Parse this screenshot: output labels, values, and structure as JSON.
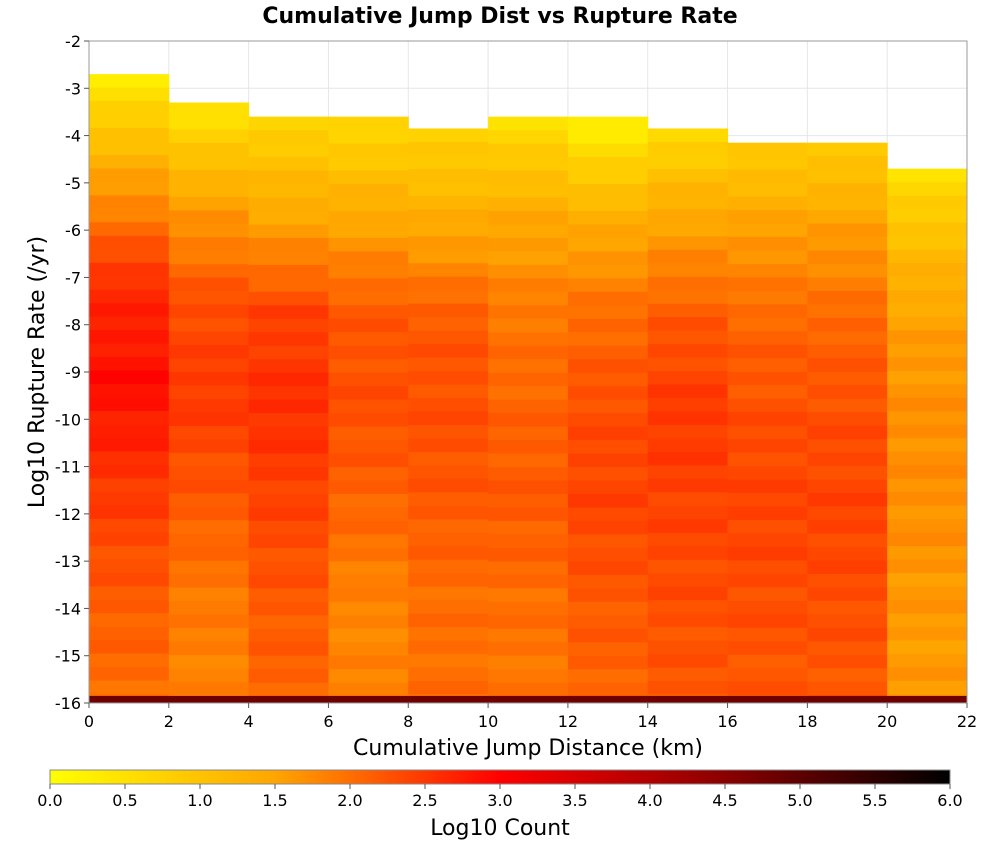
{
  "chart_data": {
    "type": "heatmap",
    "title": "Cumulative Jump Dist vs Rupture Rate",
    "xlabel": "Cumulative Jump Distance (km)",
    "ylabel": "Log10 Rupture Rate (/yr)",
    "xlim": [
      0,
      22
    ],
    "ylim": [
      -16,
      -2
    ],
    "x_ticks": [
      "0",
      "2",
      "4",
      "6",
      "8",
      "10",
      "12",
      "14",
      "16",
      "18",
      "20",
      "22"
    ],
    "y_ticks": [
      "-2",
      "-3",
      "-4",
      "-5",
      "-6",
      "-7",
      "-8",
      "-9",
      "-10",
      "-11",
      "-12",
      "-13",
      "-14",
      "-15",
      "-16"
    ],
    "x_bin_edges": [
      0,
      2,
      4,
      6,
      8,
      10,
      12,
      14,
      16,
      18,
      20,
      22
    ],
    "y_bin_size": 0.285,
    "grid": true,
    "colorbar": {
      "label": "Log10 Count",
      "range": [
        0,
        6
      ],
      "ticks": [
        "0.0",
        "0.5",
        "1.0",
        "1.5",
        "2.0",
        "2.5",
        "3.0",
        "3.5",
        "4.0",
        "4.5",
        "5.0",
        "5.5",
        "6.0"
      ],
      "colors": [
        "#ffff00",
        "#ffa500",
        "#ff0000",
        "#8b0000",
        "#000000"
      ],
      "placement": "bottom"
    },
    "series": [
      {
        "x_range": [
          0,
          2
        ],
        "y_top": -2.7,
        "log10_count_profile": [
          0.3,
          1.5,
          2.6,
          2.9,
          2.5,
          2.2,
          2.0
        ],
        "bottom_row": 4.8
      },
      {
        "x_range": [
          2,
          4
        ],
        "y_top": -3.3,
        "log10_count_profile": [
          0.4,
          1.5,
          2.3,
          2.5,
          2.2,
          1.9,
          1.8
        ],
        "bottom_row": 4.8
      },
      {
        "x_range": [
          4,
          6
        ],
        "y_top": -3.6,
        "log10_count_profile": [
          0.7,
          1.4,
          2.4,
          2.6,
          2.4,
          2.2,
          2.1
        ],
        "bottom_row": 4.8
      },
      {
        "x_range": [
          6,
          8
        ],
        "y_top": -3.6,
        "log10_count_profile": [
          0.6,
          1.4,
          2.2,
          2.3,
          2.1,
          1.8,
          1.8
        ],
        "bottom_row": 4.8
      },
      {
        "x_range": [
          8,
          10
        ],
        "y_top": -3.85,
        "log10_count_profile": [
          0.7,
          1.4,
          2.2,
          2.3,
          2.2,
          2.0,
          2.0
        ],
        "bottom_row": 4.8
      },
      {
        "x_range": [
          10,
          12
        ],
        "y_top": -3.6,
        "log10_count_profile": [
          0.5,
          1.4,
          1.9,
          2.1,
          2.2,
          2.0,
          1.9
        ],
        "bottom_row": 4.8
      },
      {
        "x_range": [
          12,
          14
        ],
        "y_top": -3.6,
        "log10_count_profile": [
          0.2,
          1.3,
          2.0,
          2.3,
          2.4,
          2.2,
          2.1
        ],
        "bottom_row": 4.8
      },
      {
        "x_range": [
          14,
          16
        ],
        "y_top": -3.85,
        "log10_count_profile": [
          0.6,
          1.5,
          2.2,
          2.5,
          2.4,
          2.3,
          2.2
        ],
        "bottom_row": 4.8
      },
      {
        "x_range": [
          16,
          18
        ],
        "y_top": -4.15,
        "log10_count_profile": [
          0.8,
          1.6,
          2.1,
          2.3,
          2.4,
          2.3,
          2.2
        ],
        "bottom_row": 4.8
      },
      {
        "x_range": [
          18,
          20
        ],
        "y_top": -4.15,
        "log10_count_profile": [
          0.8,
          1.6,
          2.1,
          2.3,
          2.4,
          2.3,
          2.2
        ],
        "bottom_row": 4.8
      },
      {
        "x_range": [
          20,
          22
        ],
        "y_top": -4.7,
        "log10_count_profile": [
          0.5,
          1.2,
          1.6,
          1.7,
          1.7,
          1.6,
          1.6
        ],
        "bottom_row": 4.8
      }
    ]
  }
}
